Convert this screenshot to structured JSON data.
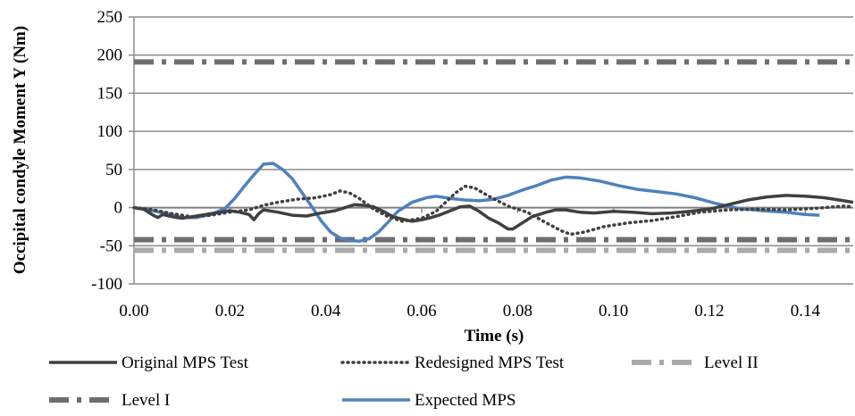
{
  "chart_data": {
    "type": "line",
    "title": "",
    "xlabel": "Time (s)",
    "ylabel": "Occipital condyle Moment  Y (Nm)",
    "xlim": [
      0,
      0.15
    ],
    "ylim": [
      -100,
      250
    ],
    "x_ticks": [
      0,
      0.02,
      0.04,
      0.06,
      0.08,
      0.1,
      0.12,
      0.14
    ],
    "x_tick_labels": [
      "0.00",
      "0.02",
      "0.04",
      "0.06",
      "0.08",
      "0.10",
      "0.12",
      "0.14"
    ],
    "y_ticks": [
      -100,
      -50,
      0,
      50,
      100,
      150,
      200,
      250
    ],
    "y_tick_labels": [
      "-100",
      "-50",
      "0",
      "50",
      "100",
      "150",
      "200",
      "250"
    ],
    "grid": "horizontal",
    "legend_position": "bottom",
    "series": [
      {
        "name": "Original MPS Test",
        "style": "solid",
        "color": "#404040",
        "points": [
          [
            0,
            0
          ],
          [
            0.002,
            -2
          ],
          [
            0.004,
            -10
          ],
          [
            0.005,
            -13
          ],
          [
            0.006,
            -9
          ],
          [
            0.008,
            -12
          ],
          [
            0.01,
            -14
          ],
          [
            0.012,
            -12
          ],
          [
            0.014,
            -10
          ],
          [
            0.016,
            -8
          ],
          [
            0.018,
            -6
          ],
          [
            0.02,
            -4
          ],
          [
            0.022,
            -6
          ],
          [
            0.024,
            -9
          ],
          [
            0.025,
            -16
          ],
          [
            0.026,
            -8
          ],
          [
            0.027,
            -3
          ],
          [
            0.03,
            -6
          ],
          [
            0.033,
            -10
          ],
          [
            0.036,
            -11
          ],
          [
            0.039,
            -7
          ],
          [
            0.042,
            -4
          ],
          [
            0.044,
            0
          ],
          [
            0.046,
            4
          ],
          [
            0.048,
            3
          ],
          [
            0.05,
            1
          ],
          [
            0.052,
            -5
          ],
          [
            0.054,
            -12
          ],
          [
            0.056,
            -15
          ],
          [
            0.058,
            -18
          ],
          [
            0.06,
            -16
          ],
          [
            0.062,
            -13
          ],
          [
            0.064,
            -9
          ],
          [
            0.066,
            -4
          ],
          [
            0.068,
            1
          ],
          [
            0.07,
            2
          ],
          [
            0.072,
            -5
          ],
          [
            0.074,
            -14
          ],
          [
            0.076,
            -20
          ],
          [
            0.078,
            -28
          ],
          [
            0.079,
            -28
          ],
          [
            0.081,
            -20
          ],
          [
            0.083,
            -12
          ],
          [
            0.086,
            -6
          ],
          [
            0.088,
            -3
          ],
          [
            0.09,
            -3
          ],
          [
            0.093,
            -6
          ],
          [
            0.096,
            -7
          ],
          [
            0.1,
            -5
          ],
          [
            0.104,
            -6
          ],
          [
            0.108,
            -8
          ],
          [
            0.112,
            -7
          ],
          [
            0.116,
            -5
          ],
          [
            0.12,
            -2
          ],
          [
            0.124,
            4
          ],
          [
            0.128,
            10
          ],
          [
            0.132,
            14
          ],
          [
            0.136,
            16
          ],
          [
            0.14,
            15
          ],
          [
            0.144,
            13
          ],
          [
            0.148,
            9
          ],
          [
            0.15,
            7
          ]
        ]
      },
      {
        "name": "Redesigned MPS Test",
        "style": "dotted",
        "color": "#404040",
        "points": [
          [
            0,
            0
          ],
          [
            0.004,
            -3
          ],
          [
            0.008,
            -8
          ],
          [
            0.012,
            -12
          ],
          [
            0.016,
            -10
          ],
          [
            0.02,
            -6
          ],
          [
            0.024,
            -3
          ],
          [
            0.027,
            3
          ],
          [
            0.03,
            7
          ],
          [
            0.034,
            11
          ],
          [
            0.038,
            13
          ],
          [
            0.041,
            17
          ],
          [
            0.043,
            22
          ],
          [
            0.045,
            19
          ],
          [
            0.047,
            12
          ],
          [
            0.05,
            -2
          ],
          [
            0.053,
            -12
          ],
          [
            0.056,
            -18
          ],
          [
            0.06,
            -14
          ],
          [
            0.063,
            -5
          ],
          [
            0.065,
            7
          ],
          [
            0.067,
            19
          ],
          [
            0.069,
            28
          ],
          [
            0.071,
            26
          ],
          [
            0.074,
            15
          ],
          [
            0.078,
            2
          ],
          [
            0.082,
            -6
          ],
          [
            0.086,
            -20
          ],
          [
            0.089,
            -30
          ],
          [
            0.091,
            -35
          ],
          [
            0.094,
            -32
          ],
          [
            0.098,
            -25
          ],
          [
            0.103,
            -20
          ],
          [
            0.108,
            -17
          ],
          [
            0.113,
            -12
          ],
          [
            0.118,
            -6
          ],
          [
            0.124,
            -3
          ],
          [
            0.13,
            -2
          ],
          [
            0.136,
            -3
          ],
          [
            0.142,
            -1
          ],
          [
            0.148,
            2
          ],
          [
            0.15,
            1
          ]
        ]
      },
      {
        "name": "Level II",
        "style": "dash-dot",
        "color": "#aaaaaa",
        "points": [
          [
            0,
            -56
          ],
          [
            0.15,
            -56
          ]
        ]
      },
      {
        "name": "Level I",
        "style": "dash-dot-heavy",
        "color": "#6e6e6e",
        "points": [
          [
            0,
            191
          ],
          [
            0.15,
            191
          ]
        ]
      },
      {
        "name": "",
        "style": "dash-dot-heavy",
        "color": "#6e6e6e",
        "points": [
          [
            0,
            -42
          ],
          [
            0.15,
            -42
          ]
        ]
      },
      {
        "name": "Expected MPS",
        "style": "solid",
        "color": "#4f81bd",
        "points": [
          [
            0,
            0
          ],
          [
            0.003,
            -3
          ],
          [
            0.007,
            -8
          ],
          [
            0.01,
            -13
          ],
          [
            0.013,
            -13
          ],
          [
            0.016,
            -9
          ],
          [
            0.019,
            -1
          ],
          [
            0.021,
            12
          ],
          [
            0.023,
            28
          ],
          [
            0.025,
            43
          ],
          [
            0.027,
            57
          ],
          [
            0.029,
            58
          ],
          [
            0.031,
            50
          ],
          [
            0.033,
            38
          ],
          [
            0.035,
            20
          ],
          [
            0.037,
            2
          ],
          [
            0.039,
            -17
          ],
          [
            0.041,
            -32
          ],
          [
            0.043,
            -40
          ],
          [
            0.045,
            -43
          ],
          [
            0.047,
            -44
          ],
          [
            0.049,
            -41
          ],
          [
            0.051,
            -32
          ],
          [
            0.053,
            -19
          ],
          [
            0.055,
            -5
          ],
          [
            0.058,
            7
          ],
          [
            0.061,
            13
          ],
          [
            0.063,
            15
          ],
          [
            0.066,
            12
          ],
          [
            0.069,
            10
          ],
          [
            0.072,
            9
          ],
          [
            0.075,
            11
          ],
          [
            0.078,
            16
          ],
          [
            0.081,
            23
          ],
          [
            0.084,
            29
          ],
          [
            0.087,
            36
          ],
          [
            0.09,
            40
          ],
          [
            0.093,
            39
          ],
          [
            0.097,
            35
          ],
          [
            0.101,
            29
          ],
          [
            0.105,
            24
          ],
          [
            0.109,
            21
          ],
          [
            0.113,
            18
          ],
          [
            0.117,
            13
          ],
          [
            0.121,
            6
          ],
          [
            0.126,
            -1
          ],
          [
            0.131,
            -4
          ],
          [
            0.136,
            -6
          ],
          [
            0.14,
            -9
          ],
          [
            0.143,
            -10
          ]
        ]
      }
    ],
    "legend": [
      {
        "label": "Original MPS Test",
        "series_index": 0
      },
      {
        "label": "Redesigned MPS Test",
        "series_index": 1
      },
      {
        "label": "Level II",
        "series_index": 2
      },
      {
        "label": "Level I",
        "series_index": 3
      },
      {
        "label": "Expected MPS",
        "series_index": 5
      }
    ]
  }
}
